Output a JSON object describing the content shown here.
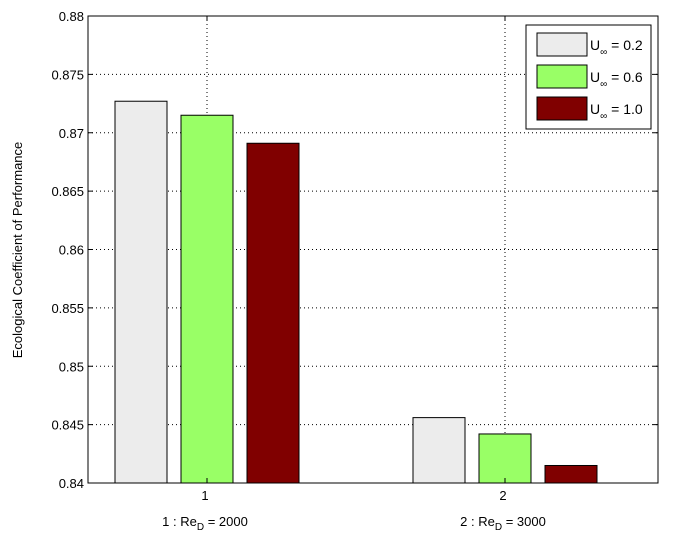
{
  "chart_data": {
    "type": "bar",
    "title": "",
    "xlabel": "",
    "ylabel": "Ecological Coefficient of Performance",
    "ylim": [
      0.84,
      0.88
    ],
    "yticks": [
      "0.84",
      "0.845",
      "0.85",
      "0.855",
      "0.86",
      "0.865",
      "0.87",
      "0.875",
      "0.88"
    ],
    "grid": true,
    "legend_position": "top-right",
    "categories": [
      {
        "tick": "1",
        "label_main": "1 : Re",
        "label_sub": "D",
        "label_rest": " = 2000"
      },
      {
        "tick": "2",
        "label_main": "2 : Re",
        "label_sub": "D",
        "label_rest": " = 3000"
      }
    ],
    "series": [
      {
        "name": "U∞ = 0.2",
        "legend_main": "U",
        "legend_sub": "∞",
        "legend_rest": " = 0.2",
        "color": "#ececec",
        "values": [
          0.8727,
          0.8456
        ]
      },
      {
        "name": "U∞ = 0.6",
        "legend_main": "U",
        "legend_sub": "∞",
        "legend_rest": " = 0.6",
        "color": "#99ff66",
        "values": [
          0.8715,
          0.8442
        ]
      },
      {
        "name": "U∞ = 1.0",
        "legend_main": "U",
        "legend_sub": "∞",
        "legend_rest": " = 1.0",
        "color": "#800000",
        "values": [
          0.8691,
          0.8415
        ]
      }
    ]
  }
}
